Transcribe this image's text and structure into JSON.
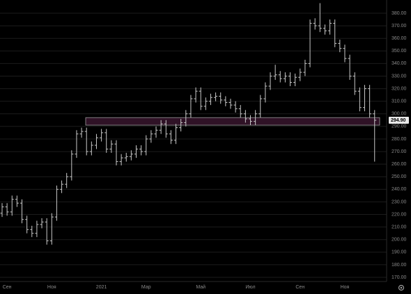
{
  "chart_data": {
    "type": "ohlc",
    "categories": [
      null,
      "Сен",
      null,
      null,
      null,
      null,
      null,
      null,
      null,
      null,
      "Ноя",
      null,
      null,
      null,
      null,
      null,
      null,
      null,
      null,
      null,
      "2021",
      null,
      null,
      null,
      null,
      null,
      null,
      null,
      null,
      "Мар",
      null,
      null,
      null,
      null,
      null,
      null,
      null,
      null,
      null,
      null,
      "Май",
      null,
      null,
      null,
      null,
      null,
      null,
      null,
      null,
      null,
      "Июл",
      null,
      null,
      null,
      null,
      null,
      null,
      null,
      null,
      null,
      "Сен",
      null,
      null,
      null,
      null,
      null,
      null,
      null,
      null,
      "Ноя",
      null,
      null,
      null,
      null,
      null,
      null
    ],
    "open": [
      221,
      226,
      222,
      232,
      229,
      216,
      208,
      205,
      212,
      214,
      199,
      218,
      240,
      244,
      250,
      268,
      284,
      286,
      270,
      275,
      281,
      285,
      272,
      276,
      262,
      265,
      266,
      268,
      272,
      270,
      280,
      284,
      287,
      292,
      284,
      279,
      289,
      293,
      300,
      312,
      318,
      306,
      310,
      313,
      314,
      311,
      309,
      307,
      304,
      300,
      296,
      294,
      300,
      312,
      322,
      330,
      331,
      328,
      330,
      325,
      329,
      333,
      340,
      372,
      370,
      368,
      366,
      372,
      356,
      352,
      344,
      330,
      318,
      305,
      320,
      300
    ],
    "high": [
      229,
      229,
      235,
      235,
      232,
      219,
      211,
      215,
      217,
      217,
      221,
      243,
      247,
      253,
      271,
      287,
      289,
      289,
      278,
      284,
      288,
      288,
      279,
      279,
      268,
      269,
      271,
      275,
      275,
      283,
      287,
      290,
      295,
      295,
      287,
      292,
      296,
      303,
      315,
      321,
      321,
      313,
      316,
      317,
      317,
      314,
      312,
      310,
      307,
      303,
      299,
      303,
      315,
      325,
      333,
      339,
      334,
      333,
      333,
      332,
      336,
      343,
      375,
      376,
      388,
      371,
      375,
      375,
      359,
      355,
      347,
      333,
      321,
      323,
      323,
      303
    ],
    "low": [
      218,
      219,
      219,
      226,
      213,
      205,
      202,
      202,
      209,
      196,
      196,
      215,
      237,
      241,
      247,
      265,
      281,
      267,
      267,
      272,
      278,
      269,
      269,
      259,
      259,
      262,
      263,
      265,
      267,
      267,
      277,
      281,
      284,
      281,
      276,
      276,
      286,
      290,
      297,
      309,
      303,
      303,
      307,
      310,
      308,
      306,
      304,
      301,
      297,
      293,
      291,
      291,
      297,
      309,
      319,
      327,
      325,
      325,
      322,
      322,
      326,
      330,
      337,
      367,
      365,
      363,
      363,
      353,
      349,
      341,
      327,
      315,
      302,
      302,
      297,
      262
    ],
    "close": [
      226,
      222,
      232,
      229,
      216,
      208,
      205,
      212,
      214,
      199,
      218,
      240,
      244,
      250,
      268,
      284,
      286,
      270,
      275,
      281,
      285,
      272,
      276,
      262,
      265,
      266,
      268,
      272,
      270,
      280,
      284,
      287,
      292,
      284,
      279,
      289,
      293,
      300,
      312,
      318,
      306,
      310,
      313,
      314,
      311,
      309,
      307,
      304,
      300,
      296,
      294,
      300,
      312,
      322,
      330,
      331,
      328,
      330,
      325,
      329,
      333,
      340,
      372,
      370,
      368,
      366,
      372,
      356,
      352,
      344,
      330,
      318,
      305,
      320,
      300,
      294.9
    ],
    "color": "#c9c9c9",
    "ylim": [
      166.7,
      390.5
    ],
    "yticks": [
      {
        "value": 170,
        "label": "170.00"
      },
      {
        "value": 180,
        "label": "180.00"
      },
      {
        "value": 190,
        "label": "190.00"
      },
      {
        "value": 200,
        "label": "200.00"
      },
      {
        "value": 210,
        "label": "210.00"
      },
      {
        "value": 220,
        "label": "220.00"
      },
      {
        "value": 230,
        "label": "230.00"
      },
      {
        "value": 240,
        "label": "240.00"
      },
      {
        "value": 250,
        "label": "250.00"
      },
      {
        "value": 260,
        "label": "260.00"
      },
      {
        "value": 270,
        "label": "270.00"
      },
      {
        "value": 280,
        "label": "280.00"
      },
      {
        "value": 290,
        "label": "290.00"
      },
      {
        "value": 300,
        "label": "300.00"
      },
      {
        "value": 310,
        "label": "310.00"
      },
      {
        "value": 320,
        "label": "320.00"
      },
      {
        "value": 330,
        "label": "330.00"
      },
      {
        "value": 340,
        "label": "340.00"
      },
      {
        "value": 350,
        "label": "350.00"
      },
      {
        "value": 360,
        "label": "360.00"
      },
      {
        "value": 370,
        "label": "370.00"
      },
      {
        "value": 380,
        "label": "380.00"
      }
    ],
    "grid": true,
    "highlight_band": [
      291,
      297
    ],
    "current_price": {
      "value": 294.9,
      "label": "294.90"
    }
  }
}
